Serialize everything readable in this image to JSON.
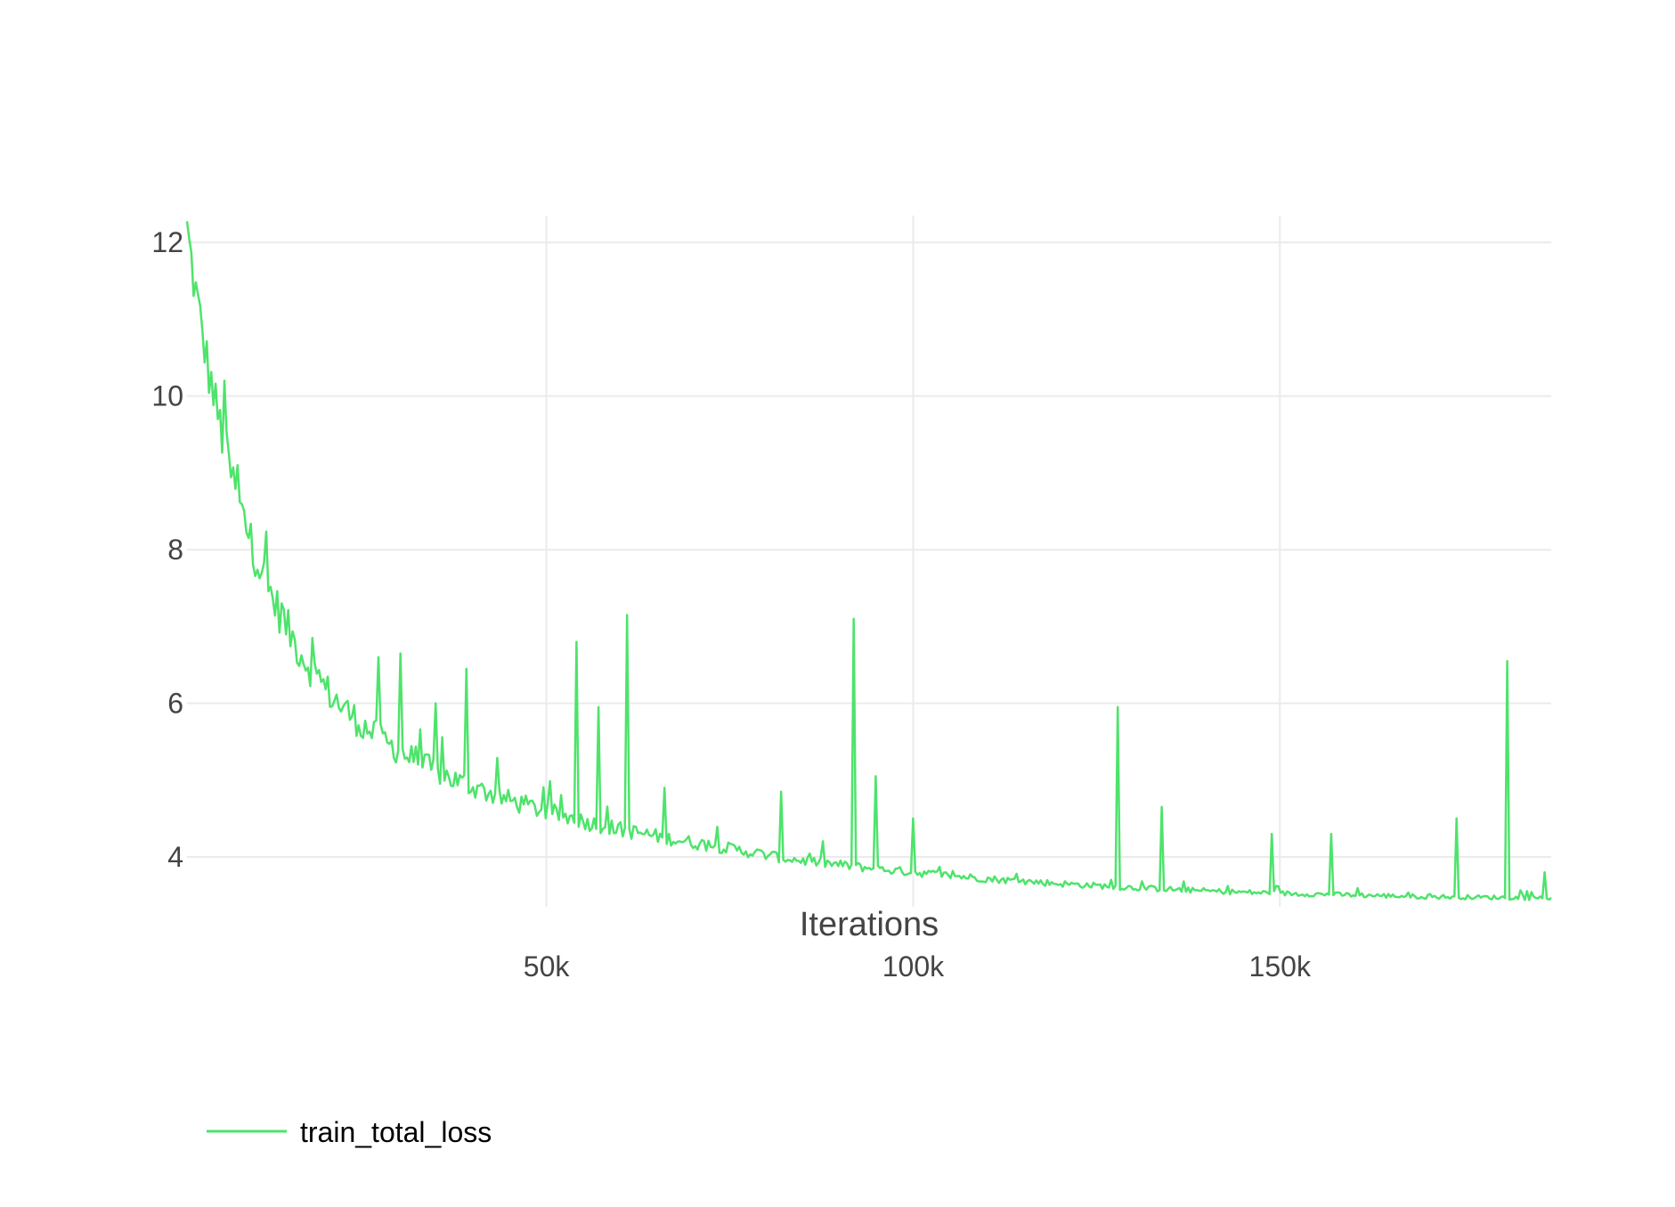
{
  "chart_data": {
    "type": "line",
    "title": "",
    "xlabel": "Iterations",
    "ylabel": "",
    "xlim": [
      1000,
      187000
    ],
    "ylim": [
      3.35,
      12.35
    ],
    "x_ticks": [
      50000,
      100000,
      150000
    ],
    "x_tick_labels": [
      "50k",
      "100k",
      "150k"
    ],
    "y_ticks": [
      4,
      6,
      8,
      10,
      12
    ],
    "y_tick_labels": [
      "4",
      "6",
      "8",
      "10",
      "12"
    ],
    "grid": true,
    "legend_position": "bottom-left",
    "series": [
      {
        "name": "train_total_loss",
        "color": "#4ee36b",
        "x": [
          1000,
          2000,
          3000,
          4000,
          5000,
          6000,
          7000,
          8000,
          9000,
          10000,
          12000,
          14000,
          16000,
          18000,
          20000,
          22000,
          25000,
          28000,
          31000,
          34000,
          37000,
          40000,
          44000,
          48000,
          52000,
          56000,
          60000,
          65000,
          70000,
          75000,
          80000,
          85000,
          90000,
          95000,
          100000,
          110000,
          120000,
          130000,
          140000,
          150000,
          160000,
          170000,
          180000,
          187000
        ],
        "values": [
          11.9,
          11.2,
          10.6,
          10.05,
          9.6,
          9.15,
          8.75,
          8.4,
          8.1,
          7.8,
          7.3,
          6.9,
          6.55,
          6.25,
          6.0,
          5.8,
          5.55,
          5.35,
          5.18,
          5.03,
          4.9,
          4.8,
          4.66,
          4.55,
          4.45,
          4.36,
          4.28,
          4.2,
          4.12,
          4.05,
          3.97,
          3.9,
          3.85,
          3.8,
          3.76,
          3.68,
          3.62,
          3.57,
          3.53,
          3.5,
          3.48,
          3.46,
          3.45,
          3.44
        ],
        "spikes": [
          {
            "x": 6000,
            "y": 10.2
          },
          {
            "x": 8000,
            "y": 9.1
          },
          {
            "x": 14000,
            "y": 7.3
          },
          {
            "x": 18000,
            "y": 6.85
          },
          {
            "x": 27000,
            "y": 6.6
          },
          {
            "x": 30000,
            "y": 6.65
          },
          {
            "x": 35000,
            "y": 6.0
          },
          {
            "x": 39000,
            "y": 6.45
          },
          {
            "x": 54000,
            "y": 6.8
          },
          {
            "x": 57000,
            "y": 5.95
          },
          {
            "x": 61000,
            "y": 7.15
          },
          {
            "x": 66000,
            "y": 4.9
          },
          {
            "x": 82000,
            "y": 4.85
          },
          {
            "x": 92000,
            "y": 7.1
          },
          {
            "x": 95000,
            "y": 5.05
          },
          {
            "x": 100000,
            "y": 4.5
          },
          {
            "x": 128000,
            "y": 5.95
          },
          {
            "x": 134000,
            "y": 4.65
          },
          {
            "x": 149000,
            "y": 4.3
          },
          {
            "x": 157000,
            "y": 4.3
          },
          {
            "x": 174000,
            "y": 4.5
          },
          {
            "x": 181000,
            "y": 6.55
          },
          {
            "x": 186000,
            "y": 3.8
          }
        ]
      }
    ]
  }
}
